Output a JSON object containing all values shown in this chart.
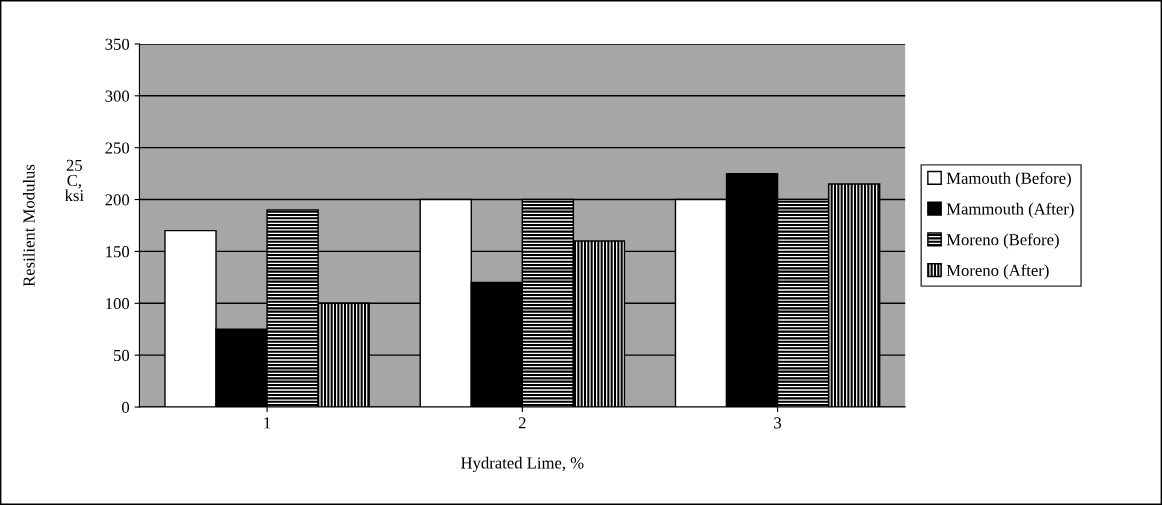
{
  "chart_data": {
    "type": "bar",
    "xlabel": "Hydrated Lime, %",
    "ylabel": "Resilient Modulus",
    "annotations": [
      "25 C, ksi"
    ],
    "categories": [
      "1",
      "2",
      "3"
    ],
    "series": [
      {
        "name": "Mamouth (Before)",
        "color": "#ffffff",
        "values": [
          170,
          200,
          200
        ]
      },
      {
        "name": "Mammouth (After)",
        "color": "#000000",
        "values": [
          75,
          120,
          225
        ]
      },
      {
        "name": "Moreno (Before)",
        "color": "#000000",
        "values": [
          190,
          200,
          200
        ]
      },
      {
        "name": "Moreno (After)",
        "color": "#000000",
        "values": [
          100,
          160,
          215
        ]
      }
    ],
    "ylim": [
      0,
      350
    ],
    "yticks": [
      0,
      50,
      100,
      150,
      200,
      250,
      300,
      350
    ],
    "grid": "y",
    "legend": "right"
  }
}
